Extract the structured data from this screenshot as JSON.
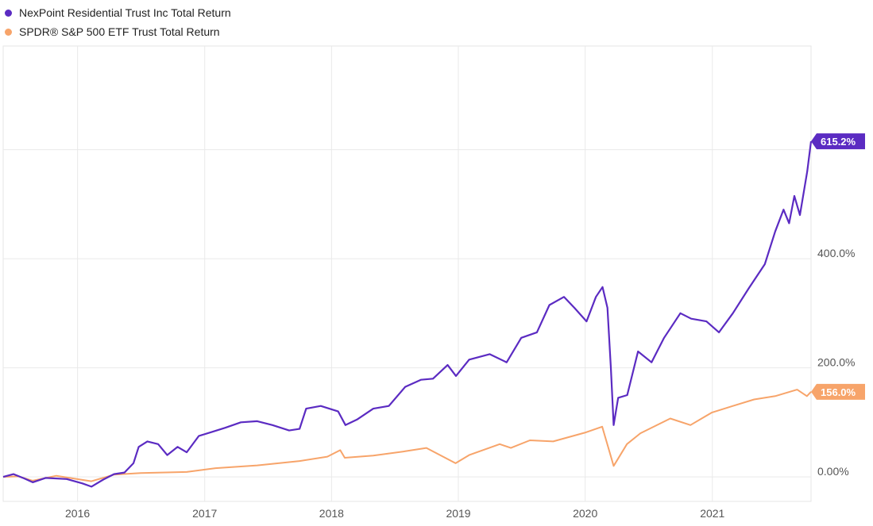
{
  "chart_data": {
    "type": "line",
    "title": "",
    "xlabel": "",
    "ylabel": "",
    "x_ticks": [
      "2016",
      "2017",
      "2018",
      "2019",
      "2020",
      "2021"
    ],
    "y_ticks": [
      "0.00%",
      "200.0%",
      "400.0%"
    ],
    "ylim": [
      -45,
      790
    ],
    "xlim": [
      "2015-06-01",
      "2021-10-12"
    ],
    "grid": true,
    "legend": "top-left",
    "series": [
      {
        "name": "NexPoint Residential Trust Inc Total Return",
        "color": "#5b2bc2",
        "end_label": "615.2%",
        "points": [
          [
            "2015-06-01",
            0
          ],
          [
            "2015-07-01",
            5
          ],
          [
            "2015-08-01",
            -3
          ],
          [
            "2015-08-25",
            -10
          ],
          [
            "2015-10-01",
            -2
          ],
          [
            "2015-12-01",
            -4
          ],
          [
            "2016-01-15",
            -12
          ],
          [
            "2016-02-10",
            -18
          ],
          [
            "2016-03-15",
            -5
          ],
          [
            "2016-04-15",
            5
          ],
          [
            "2016-05-15",
            8
          ],
          [
            "2016-06-10",
            25
          ],
          [
            "2016-06-25",
            55
          ],
          [
            "2016-07-20",
            65
          ],
          [
            "2016-08-20",
            60
          ],
          [
            "2016-09-15",
            40
          ],
          [
            "2016-10-15",
            55
          ],
          [
            "2016-11-10",
            45
          ],
          [
            "2016-12-15",
            75
          ],
          [
            "2017-01-20",
            82
          ],
          [
            "2017-03-01",
            90
          ],
          [
            "2017-04-15",
            100
          ],
          [
            "2017-06-01",
            102
          ],
          [
            "2017-07-15",
            95
          ],
          [
            "2017-09-01",
            85
          ],
          [
            "2017-10-01",
            88
          ],
          [
            "2017-10-20",
            125
          ],
          [
            "2017-12-01",
            130
          ],
          [
            "2018-01-20",
            120
          ],
          [
            "2018-02-10",
            95
          ],
          [
            "2018-03-15",
            105
          ],
          [
            "2018-05-01",
            125
          ],
          [
            "2018-06-15",
            130
          ],
          [
            "2018-08-01",
            165
          ],
          [
            "2018-09-15",
            178
          ],
          [
            "2018-10-20",
            180
          ],
          [
            "2018-12-01",
            205
          ],
          [
            "2018-12-25",
            185
          ],
          [
            "2019-02-01",
            215
          ],
          [
            "2019-04-01",
            225
          ],
          [
            "2019-05-20",
            210
          ],
          [
            "2019-07-01",
            255
          ],
          [
            "2019-08-15",
            265
          ],
          [
            "2019-09-20",
            315
          ],
          [
            "2019-11-01",
            330
          ],
          [
            "2019-12-01",
            310
          ],
          [
            "2020-01-05",
            285
          ],
          [
            "2020-02-01",
            330
          ],
          [
            "2020-02-20",
            348
          ],
          [
            "2020-03-05",
            310
          ],
          [
            "2020-03-15",
            200
          ],
          [
            "2020-03-23",
            95
          ],
          [
            "2020-04-05",
            145
          ],
          [
            "2020-05-01",
            150
          ],
          [
            "2020-06-01",
            230
          ],
          [
            "2020-07-10",
            210
          ],
          [
            "2020-08-15",
            255
          ],
          [
            "2020-10-01",
            300
          ],
          [
            "2020-11-01",
            290
          ],
          [
            "2020-12-15",
            285
          ],
          [
            "2021-01-20",
            265
          ],
          [
            "2021-03-01",
            300
          ],
          [
            "2021-04-15",
            345
          ],
          [
            "2021-06-01",
            390
          ],
          [
            "2021-07-01",
            450
          ],
          [
            "2021-07-25",
            490
          ],
          [
            "2021-08-10",
            465
          ],
          [
            "2021-08-25",
            515
          ],
          [
            "2021-09-10",
            480
          ],
          [
            "2021-10-01",
            560
          ],
          [
            "2021-10-12",
            615.2
          ]
        ]
      },
      {
        "name": "SPDR® S&P 500 ETF Trust Total Return",
        "color": "#f7a46a",
        "end_label": "156.0%",
        "points": [
          [
            "2015-06-01",
            0
          ],
          [
            "2015-07-15",
            1
          ],
          [
            "2015-08-25",
            -7
          ],
          [
            "2015-11-01",
            2
          ],
          [
            "2016-02-10",
            -8
          ],
          [
            "2016-04-15",
            4
          ],
          [
            "2016-07-01",
            7
          ],
          [
            "2016-11-10",
            9
          ],
          [
            "2017-02-01",
            16
          ],
          [
            "2017-06-01",
            21
          ],
          [
            "2017-10-01",
            29
          ],
          [
            "2017-12-20",
            37
          ],
          [
            "2018-01-26",
            49
          ],
          [
            "2018-02-08",
            35
          ],
          [
            "2018-05-01",
            39
          ],
          [
            "2018-08-01",
            47
          ],
          [
            "2018-10-01",
            53
          ],
          [
            "2018-12-24",
            25
          ],
          [
            "2019-02-01",
            40
          ],
          [
            "2019-04-30",
            60
          ],
          [
            "2019-06-01",
            53
          ],
          [
            "2019-07-26",
            67
          ],
          [
            "2019-10-01",
            65
          ],
          [
            "2019-12-31",
            81
          ],
          [
            "2020-02-19",
            92
          ],
          [
            "2020-03-23",
            20
          ],
          [
            "2020-04-30",
            60
          ],
          [
            "2020-06-08",
            80
          ],
          [
            "2020-09-02",
            107
          ],
          [
            "2020-10-30",
            95
          ],
          [
            "2020-12-31",
            118
          ],
          [
            "2021-03-01",
            130
          ],
          [
            "2021-05-01",
            142
          ],
          [
            "2021-07-01",
            148
          ],
          [
            "2021-09-02",
            160
          ],
          [
            "2021-09-30",
            148
          ],
          [
            "2021-10-12",
            156.0
          ]
        ]
      }
    ]
  }
}
